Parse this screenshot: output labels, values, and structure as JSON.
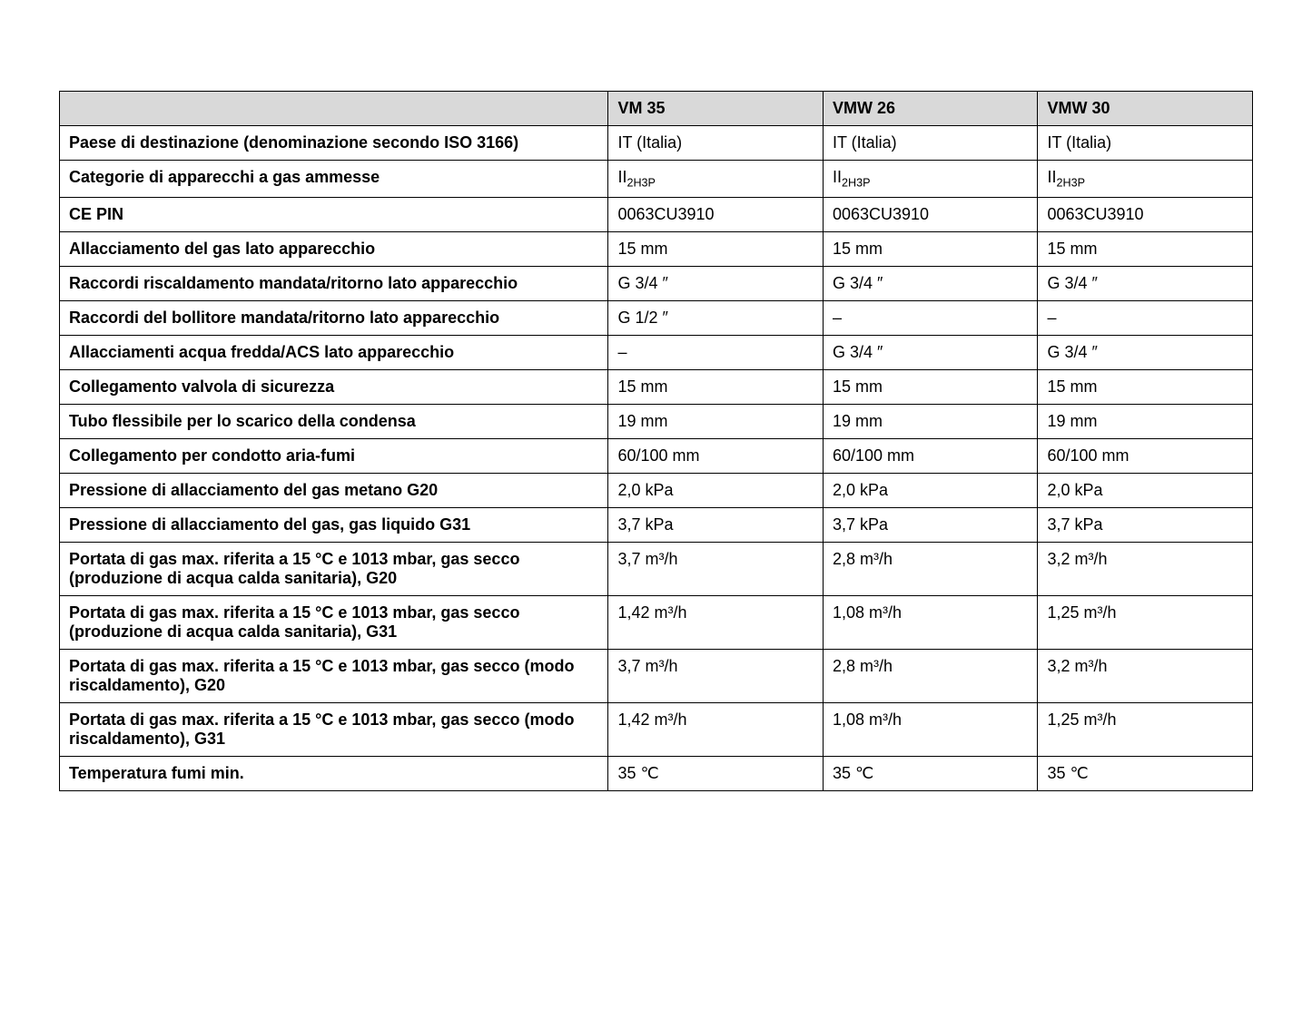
{
  "table": {
    "header_bg": "#d9d9d9",
    "border_color": "#000000",
    "columns": [
      "",
      "VM 35",
      "VMW 26",
      "VMW 30"
    ],
    "rows": [
      {
        "label": "Paese di destinazione (denominazione secondo ISO 3166)",
        "values": [
          "IT (Italia)",
          "IT (Italia)",
          "IT (Italia)"
        ],
        "has_subscript": false
      },
      {
        "label": "Categorie di apparecchi a gas ammesse",
        "values": [
          "II|2H3P",
          "II|2H3P",
          "II|2H3P"
        ],
        "has_subscript": true
      },
      {
        "label": "CE PIN",
        "values": [
          "0063CU3910",
          "0063CU3910",
          "0063CU3910"
        ],
        "has_subscript": false
      },
      {
        "label": "Allacciamento del gas lato apparecchio",
        "values": [
          "15 mm",
          "15 mm",
          "15 mm"
        ],
        "has_subscript": false
      },
      {
        "label": "Raccordi riscaldamento mandata/ritorno lato apparecchio",
        "values": [
          "G 3/4 ″",
          "G 3/4 ″",
          "G 3/4 ″"
        ],
        "has_subscript": false
      },
      {
        "label": "Raccordi del bollitore mandata/ritorno lato apparecchio",
        "values": [
          "G 1/2 ″",
          "–",
          "–"
        ],
        "has_subscript": false
      },
      {
        "label": "Allacciamenti acqua fredda/ACS lato apparecchio",
        "values": [
          "–",
          "G 3/4 ″",
          "G 3/4 ″"
        ],
        "has_subscript": false
      },
      {
        "label": "Collegamento valvola di sicurezza",
        "values": [
          "15 mm",
          "15 mm",
          "15 mm"
        ],
        "has_subscript": false
      },
      {
        "label": "Tubo flessibile per lo scarico della condensa",
        "values": [
          "19 mm",
          "19 mm",
          "19 mm"
        ],
        "has_subscript": false
      },
      {
        "label": "Collegamento per condotto aria-fumi",
        "values": [
          "60/100 mm",
          "60/100 mm",
          "60/100 mm"
        ],
        "has_subscript": false
      },
      {
        "label": "Pressione di allacciamento del gas metano G20",
        "values": [
          "2,0 kPa",
          "2,0 kPa",
          "2,0 kPa"
        ],
        "has_subscript": false
      },
      {
        "label": "Pressione di allacciamento del gas, gas liquido G31",
        "values": [
          "3,7 kPa",
          "3,7 kPa",
          "3,7 kPa"
        ],
        "has_subscript": false
      },
      {
        "label": "Portata di gas max. riferita a 15 °C e 1013 mbar, gas secco (produzione di acqua calda sanitaria), G20",
        "values": [
          "3,7 m³/h",
          "2,8 m³/h",
          "3,2 m³/h"
        ],
        "has_subscript": false
      },
      {
        "label": "Portata di gas max. riferita a 15 °C e 1013 mbar, gas secco (produzione di acqua calda sanitaria), G31",
        "values": [
          "1,42 m³/h",
          "1,08 m³/h",
          "1,25 m³/h"
        ],
        "has_subscript": false
      },
      {
        "label": "Portata di gas max. riferita a 15 °C e 1013 mbar, gas secco (modo riscaldamento), G20",
        "values": [
          "3,7 m³/h",
          "2,8 m³/h",
          "3,2 m³/h"
        ],
        "has_subscript": false
      },
      {
        "label": "Portata di gas max. riferita a 15 °C e 1013 mbar, gas secco (modo riscaldamento), G31",
        "values": [
          "1,42 m³/h",
          "1,08 m³/h",
          "1,25 m³/h"
        ],
        "has_subscript": false
      },
      {
        "label": "Temperatura fumi min.",
        "values": [
          "35 ℃",
          "35 ℃",
          "35 ℃"
        ],
        "has_subscript": false
      }
    ]
  }
}
